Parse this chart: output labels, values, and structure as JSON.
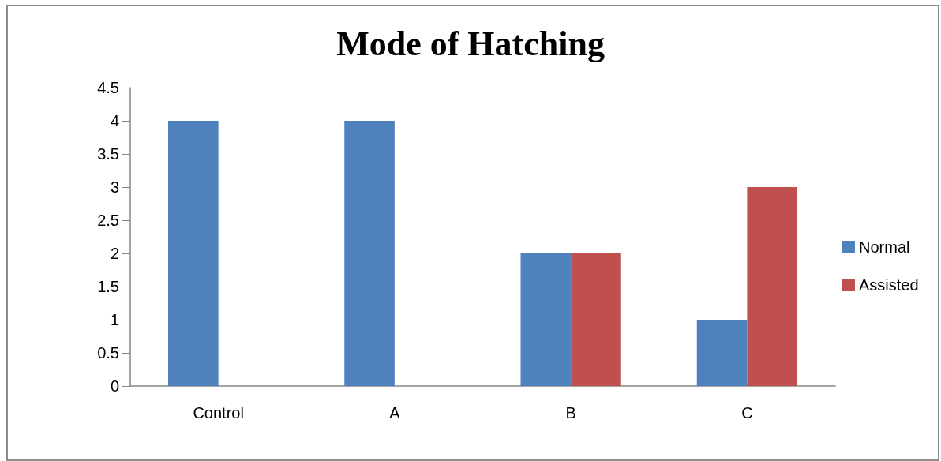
{
  "chart_data": {
    "type": "bar",
    "title": "Mode of Hatching",
    "categories": [
      "Control",
      "A",
      "B",
      "C"
    ],
    "series": [
      {
        "name": "Normal",
        "color": "#4f81bd",
        "values": [
          4,
          4,
          2,
          1
        ]
      },
      {
        "name": "Assisted",
        "color": "#c0504d",
        "values": [
          0,
          0,
          2,
          3
        ]
      }
    ],
    "ylim": [
      0,
      4.5
    ],
    "yticks": [
      0,
      0.5,
      1,
      1.5,
      2,
      2.5,
      3,
      3.5,
      4,
      4.5
    ],
    "grid": false,
    "legend": "right"
  }
}
